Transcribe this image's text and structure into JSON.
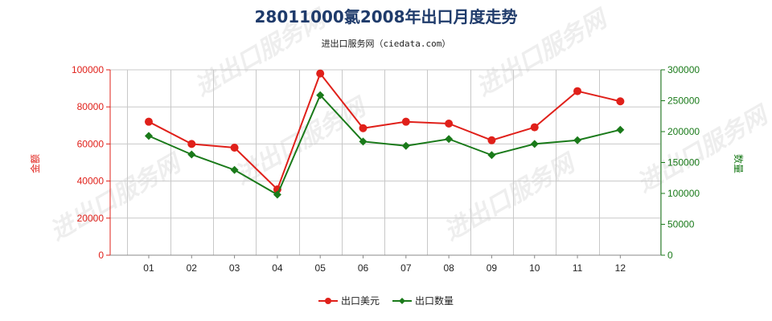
{
  "chart_data": {
    "type": "line",
    "title": "28011000氯2008年出口月度走势",
    "subtitle": "进出口服务网（ciedata.com）",
    "categories": [
      "01",
      "02",
      "03",
      "04",
      "05",
      "06",
      "07",
      "08",
      "09",
      "10",
      "11",
      "12"
    ],
    "ylabel_left": "金额",
    "ylabel_right": "数量",
    "ylim_left": [
      0,
      100000
    ],
    "ylim_right": [
      0,
      300000
    ],
    "yticks_left": [
      0,
      20000,
      40000,
      60000,
      80000,
      100000
    ],
    "yticks_right": [
      0,
      50000,
      100000,
      150000,
      200000,
      250000,
      300000
    ],
    "grid": true,
    "legend_position": "bottom",
    "series": [
      {
        "name": "出口美元",
        "axis": "left",
        "color": "#e0201a",
        "marker": "circle",
        "values": [
          72000,
          60000,
          58000,
          35500,
          98000,
          68500,
          72000,
          71000,
          62000,
          69000,
          88500,
          83000
        ]
      },
      {
        "name": "出口数量",
        "axis": "right",
        "color": "#1a7a1a",
        "marker": "diamond",
        "values": [
          193000,
          163000,
          138000,
          98000,
          259000,
          184000,
          177000,
          188000,
          162000,
          180000,
          186000,
          203000
        ]
      }
    ],
    "watermark": "进出口服务网"
  }
}
